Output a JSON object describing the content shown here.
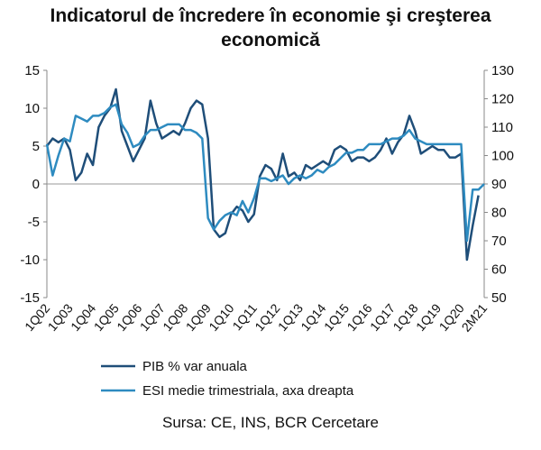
{
  "chart_data": {
    "type": "line",
    "title": "Indicatorul de încredere în economie şi creşterea economică",
    "source": "Sursa: CE, INS, BCR Cercetare",
    "categories": [
      "1Q02",
      null,
      null,
      null,
      "1Q03",
      null,
      null,
      null,
      "1Q04",
      null,
      null,
      null,
      "1Q05",
      null,
      null,
      null,
      "1Q06",
      null,
      null,
      null,
      "1Q07",
      null,
      null,
      null,
      "1Q08",
      null,
      null,
      null,
      "1Q09",
      null,
      null,
      null,
      "1Q10",
      null,
      null,
      null,
      "1Q11",
      null,
      null,
      null,
      "1Q12",
      null,
      null,
      null,
      "1Q13",
      null,
      null,
      null,
      "1Q14",
      null,
      null,
      null,
      "1Q15",
      null,
      null,
      null,
      "1Q16",
      null,
      null,
      null,
      "1Q17",
      null,
      null,
      null,
      "1Q18",
      null,
      null,
      null,
      "1Q19",
      null,
      null,
      null,
      "1Q20",
      null,
      null,
      null,
      "2M21"
    ],
    "series": [
      {
        "name": "PIB % var anuala",
        "color": "#1f4e79",
        "axis": "y",
        "values": [
          5,
          6,
          5.5,
          6,
          4.5,
          0.5,
          1.5,
          4,
          2.5,
          7.5,
          9,
          10,
          12.5,
          7,
          5,
          3,
          4.5,
          6,
          11,
          8,
          6,
          6.5,
          7,
          6.5,
          8,
          10,
          11,
          10.5,
          6,
          -6,
          -7,
          -6.5,
          -4,
          -3,
          -3.5,
          -5,
          -4,
          1,
          2.5,
          2,
          0.5,
          4,
          1,
          1.5,
          0.5,
          2.5,
          2,
          2.5,
          3,
          2.5,
          4.5,
          5,
          4.5,
          3,
          3.5,
          3.5,
          3,
          3.5,
          4.5,
          6,
          4,
          5.5,
          6.5,
          9,
          7,
          4,
          4.5,
          5,
          4.5,
          4.5,
          3.5,
          3.5,
          4,
          -10,
          -5.5,
          -1.5,
          null
        ]
      },
      {
        "name": "ESI medie trimestriala, axa dreapta",
        "color": "#2e8bc0",
        "axis": "y2",
        "values": [
          104,
          93,
          100,
          106,
          105,
          114,
          113,
          112,
          114,
          114,
          115,
          117,
          118,
          111,
          108,
          103,
          104,
          107,
          109,
          109,
          110,
          111,
          111,
          111,
          109,
          109,
          108,
          106,
          78,
          74,
          77,
          79,
          80,
          79,
          84,
          80,
          85,
          92,
          92,
          91,
          92,
          93,
          90,
          92,
          93,
          92,
          93,
          95,
          94,
          96,
          97,
          99,
          101,
          101,
          102,
          102,
          104,
          104,
          104,
          105,
          106,
          106,
          107,
          109,
          106,
          105,
          104,
          104,
          104,
          104,
          104,
          104,
          104,
          70,
          88,
          88,
          90
        ]
      }
    ],
    "ylim": [
      -15,
      15
    ],
    "yticks": [
      -15,
      -10,
      -5,
      0,
      5,
      10,
      15
    ],
    "y2lim": [
      50,
      130
    ],
    "y2ticks": [
      50,
      60,
      70,
      80,
      90,
      100,
      110,
      120,
      130
    ]
  }
}
